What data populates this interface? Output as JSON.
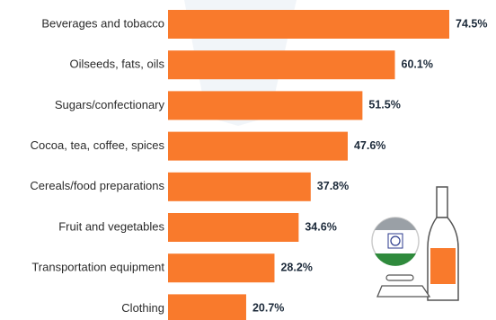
{
  "chart_data": {
    "type": "bar",
    "orientation": "horizontal",
    "categories": [
      "Beverages and tobacco",
      "Oilseeds, fats, oils",
      "Sugars/confectionary",
      "Cocoa, tea, coffee, spices",
      "Cereals/food preparations",
      "Fruit and vegetables",
      "Transportation equipment",
      "Clothing"
    ],
    "values": [
      74.5,
      60.1,
      51.5,
      47.6,
      37.8,
      34.6,
      28.2,
      20.7
    ],
    "value_labels": [
      "74.5%",
      "60.1%",
      "51.5%",
      "47.6%",
      "37.8%",
      "34.6%",
      "28.2%",
      "20.7%"
    ],
    "color": "#f97a2c"
  }
}
